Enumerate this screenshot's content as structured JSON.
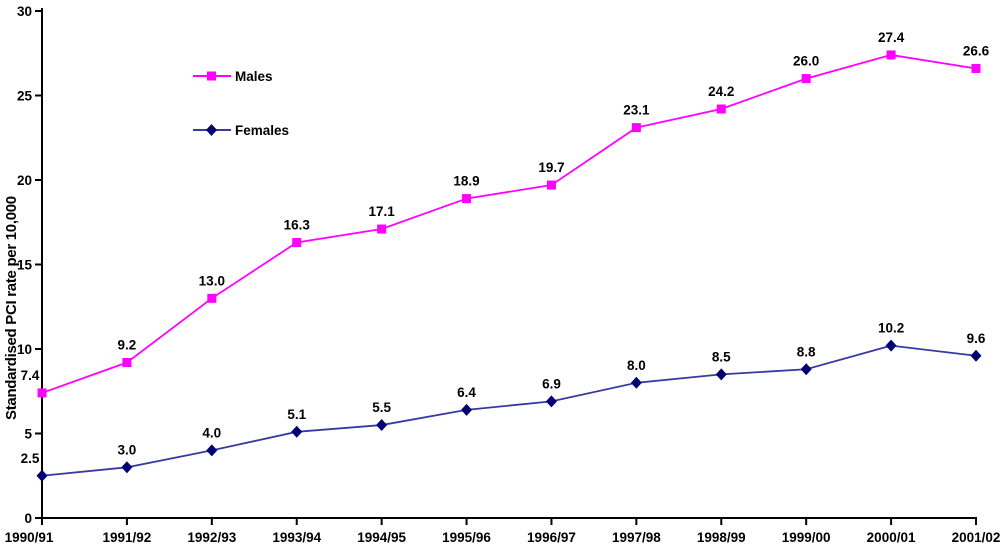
{
  "chart_data": {
    "type": "line",
    "title": "",
    "xlabel": "",
    "ylabel": "Standardised PCI rate per 10,000",
    "ylim": [
      0,
      30
    ],
    "yticks": [
      0,
      5,
      10,
      15,
      20,
      25,
      30
    ],
    "grid": false,
    "legend_position": "inside-top-left",
    "background_color": "#FFFFFF",
    "axis_color": "#000000",
    "label_color": "#000000",
    "categories": [
      "1990/91",
      "1991/92",
      "1992/93",
      "1993/94",
      "1994/95",
      "1995/96",
      "1996/97",
      "1997/98",
      "1998/99",
      "1999/00",
      "2000/01",
      "2001/02"
    ],
    "series": [
      {
        "name": "Males",
        "marker": "square",
        "color": "#FF00FF",
        "line_color": "#FF00FF",
        "values": [
          7.4,
          9.2,
          13.0,
          16.3,
          17.1,
          18.9,
          19.7,
          23.1,
          24.2,
          26.0,
          27.4,
          26.6
        ]
      },
      {
        "name": "Females",
        "marker": "diamond",
        "color": "#000073",
        "line_color": "#3939A3",
        "values": [
          2.5,
          3.0,
          4.0,
          5.1,
          5.5,
          6.4,
          6.9,
          8.0,
          8.5,
          8.8,
          10.2,
          9.6
        ]
      }
    ]
  }
}
